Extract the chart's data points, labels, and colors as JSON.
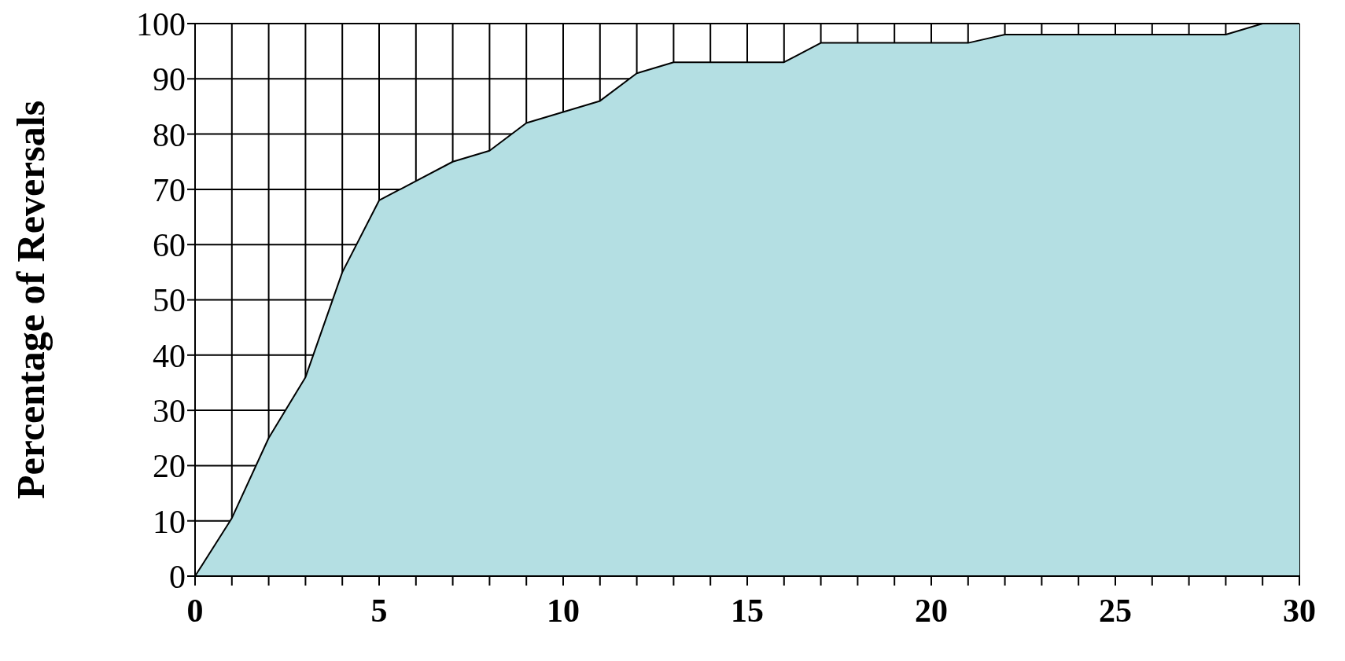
{
  "chart_data": {
    "type": "area",
    "ylabel": "Percentage of Reversals",
    "x": [
      0,
      1,
      2,
      3,
      4,
      5,
      6,
      7,
      8,
      9,
      10,
      11,
      12,
      13,
      14,
      15,
      16,
      17,
      18,
      19,
      20,
      21,
      22,
      23,
      24,
      25,
      26,
      27,
      28,
      29,
      30
    ],
    "series": [
      {
        "color": "#b4dfe3",
        "values": [
          0,
          10.5,
          25,
          36,
          55,
          68,
          71.5,
          75,
          77,
          82,
          84,
          86,
          91,
          93,
          93,
          93,
          93,
          96.5,
          96.5,
          96.5,
          96.5,
          96.5,
          98,
          98,
          98,
          98,
          98,
          98,
          98,
          100,
          100
        ]
      }
    ],
    "xlim": [
      0,
      30
    ],
    "xticks": [
      0,
      {
        "value": 1,
        "label": null
      },
      {
        "value": 2,
        "label": null
      },
      {
        "value": 3,
        "label": null
      },
      {
        "value": 4,
        "label": null
      },
      5,
      {
        "value": 6,
        "label": null
      },
      {
        "value": 7,
        "label": null
      },
      {
        "value": 8,
        "label": null
      },
      {
        "value": 9,
        "label": null
      },
      10,
      {
        "value": 11,
        "label": null
      },
      {
        "value": 12,
        "label": null
      },
      {
        "value": 13,
        "label": null
      },
      {
        "value": 14,
        "label": null
      },
      15,
      {
        "value": 16,
        "label": null
      },
      {
        "value": 17,
        "label": null
      },
      {
        "value": 18,
        "label": null
      },
      {
        "value": 19,
        "label": null
      },
      20,
      {
        "value": 21,
        "label": null
      },
      {
        "value": 22,
        "label": null
      },
      {
        "value": 23,
        "label": null
      },
      {
        "value": 24,
        "label": null
      },
      25,
      {
        "value": 26,
        "label": null
      },
      {
        "value": 27,
        "label": null
      },
      {
        "value": 28,
        "label": null
      },
      {
        "value": 29,
        "label": null
      },
      30
    ],
    "ylim": [
      0,
      100
    ],
    "yticks": [
      0,
      10,
      20,
      30,
      40,
      50,
      60,
      70,
      80,
      90,
      100
    ],
    "grid": true
  }
}
